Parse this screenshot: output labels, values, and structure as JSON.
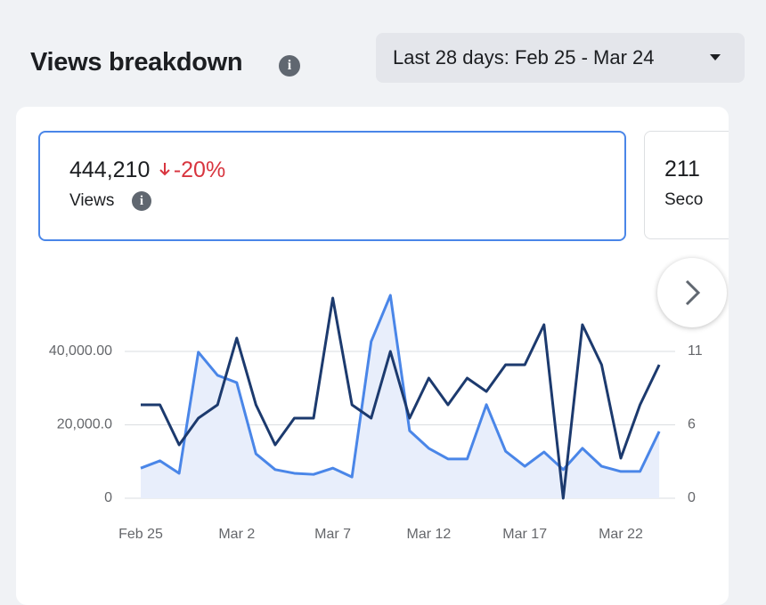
{
  "header": {
    "title": "Views breakdown",
    "date_range": "Last 28 days: Feb 25 - Mar 24"
  },
  "metrics": [
    {
      "value": "444,210",
      "change": "-20%",
      "label": "Views"
    },
    {
      "value": "211",
      "label": "Seco"
    }
  ],
  "chart_data": {
    "type": "line",
    "categories": [
      "Feb 25",
      null,
      null,
      null,
      null,
      "Mar 2",
      null,
      null,
      null,
      null,
      "Mar 7",
      null,
      null,
      null,
      null,
      "Mar 12",
      null,
      null,
      null,
      null,
      "Mar 17",
      null,
      null,
      null,
      null,
      "Mar 22",
      null,
      null
    ],
    "series": [
      {
        "color": "#4a86e8",
        "fill": "#e8eefb",
        "values": [
          8200,
          10200,
          6800,
          39800,
          33500,
          31500,
          12100,
          7800,
          6800,
          6500,
          8200,
          5800,
          42700,
          55300,
          18400,
          13600,
          10700,
          10700,
          25500,
          12800,
          8700,
          12600,
          7800,
          13600,
          8700,
          7300,
          7300,
          18200
        ]
      },
      {
        "color": "#1c3a6e",
        "axis": "y2",
        "values": [
          7,
          7,
          4,
          6,
          7,
          12,
          7,
          4,
          6,
          6,
          15,
          7,
          6,
          11,
          6,
          9,
          7,
          9,
          8,
          10,
          10,
          13,
          0,
          13,
          10,
          3,
          7,
          10
        ]
      }
    ],
    "ylim": [
      0,
      56000
    ],
    "yticks": [
      0,
      {
        "value": 20000,
        "label": "20,000.0"
      },
      {
        "value": 40000,
        "label": "40,000.00"
      }
    ],
    "y2lim": [
      0,
      15.4
    ],
    "y2ticks": [
      0,
      {
        "value": 5.5,
        "label": "6"
      },
      11
    ],
    "grid": true
  }
}
